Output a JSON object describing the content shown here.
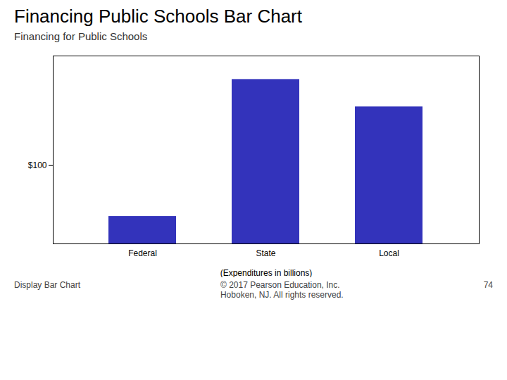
{
  "chart_data": {
    "type": "bar",
    "title": "Financing Public Schools Bar Chart",
    "subtitle": "Financing for Public Schools",
    "categories": [
      "Federal",
      "State",
      "Local"
    ],
    "values": [
      35,
      210,
      175
    ],
    "color": "#3333BB",
    "xlabel": "(Expenditures in billions)",
    "ylim": [
      0,
      240
    ],
    "yticks": [
      {
        "value": 100,
        "label": "$100"
      }
    ],
    "grid": false,
    "annotations": [
      "Display Bar Chart",
      "© 2017 Pearson Education, Inc.\nHoboken, NJ. All rights reserved.",
      "74"
    ]
  }
}
